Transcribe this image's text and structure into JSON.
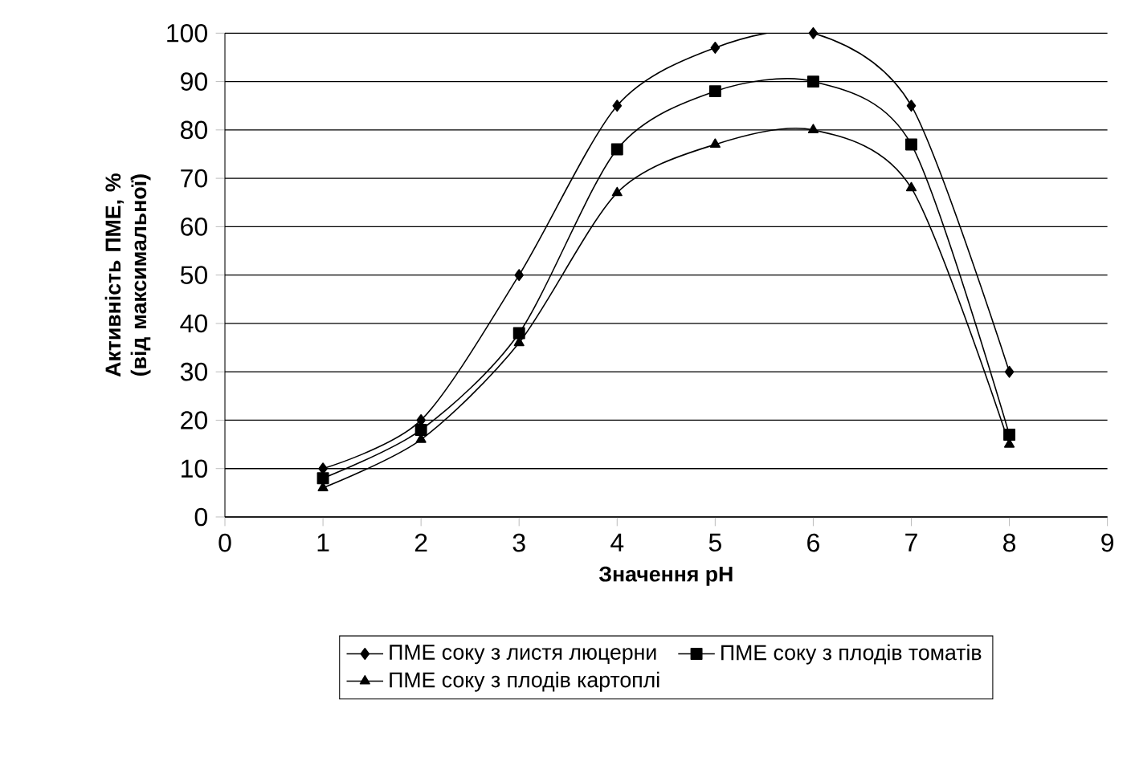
{
  "chart_data": {
    "type": "line",
    "xlabel": "Значення pH",
    "ylabel": "Активність ПМЕ, % (від максимальної)",
    "x": [
      1,
      2,
      3,
      4,
      5,
      6,
      7,
      8
    ],
    "series": [
      {
        "name": "ПМЕ соку з листя люцерни",
        "color": "#000000",
        "marker": "diamond",
        "values": [
          10,
          20,
          50,
          85,
          97,
          100,
          85,
          30
        ]
      },
      {
        "name": "ПМЕ соку з плодів томатів",
        "color": "#000000",
        "marker": "square",
        "values": [
          8,
          18,
          38,
          76,
          88,
          90,
          77,
          17
        ]
      },
      {
        "name": "ПМЕ соку з плодів картоплі",
        "color": "#000000",
        "marker": "triangle",
        "values": [
          6,
          16,
          36,
          67,
          77,
          80,
          68,
          15
        ]
      }
    ],
    "xlim": [
      0,
      9
    ],
    "ylim": [
      0,
      100
    ],
    "xticks": [
      0,
      1,
      2,
      3,
      4,
      5,
      6,
      7,
      8,
      9
    ],
    "yticks": [
      0,
      10,
      20,
      30,
      40,
      50,
      60,
      70,
      80,
      90,
      100
    ],
    "grid": "y",
    "legend": "bottom",
    "line_style": "solid"
  }
}
